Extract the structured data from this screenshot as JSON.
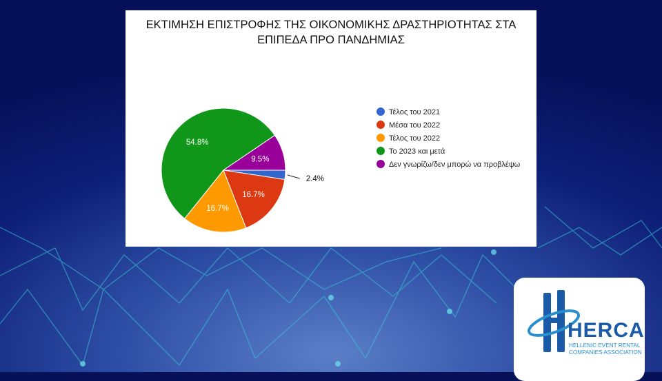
{
  "chart_data": {
    "type": "pie",
    "title": "ΕΚΤΙΜΗΣΗ ΕΠΙΣΤΡΟΦΗΣ ΤΗΣ ΟΙΚΟΝΟΜΙΚΗΣ ΔΡΑΣΤΗΡΙΟΤΗΤΑΣ ΣΤΑ ΕΠΙΠΕΔΑ ΠΡΟ ΠΑΝΔΗΜΙΑΣ",
    "legend_position": "right",
    "slices": [
      {
        "label": "Τέλος του 2021",
        "value": 2.4,
        "display": "2.4%",
        "color": "#3366cc"
      },
      {
        "label": "Μέσα του 2022",
        "value": 16.7,
        "display": "16.7%",
        "color": "#dc3912"
      },
      {
        "label": "Τέλος του 2022",
        "value": 16.7,
        "display": "16.7%",
        "color": "#ff9900"
      },
      {
        "label": "Το 2023 και μετά",
        "value": 54.8,
        "display": "54.8%",
        "color": "#109618"
      },
      {
        "label": "Δεν γνωρίζω/δεν μπορώ να προβλέψω",
        "value": 9.5,
        "display": "9.5%",
        "color": "#990099"
      }
    ]
  },
  "logo": {
    "name": "HERCA",
    "subtitle": "HELLENIC EVENT RENTAL COMPANIES ASSOCIATION",
    "primary_color": "#1b5aa6",
    "accent_color": "#2a8fd0"
  }
}
